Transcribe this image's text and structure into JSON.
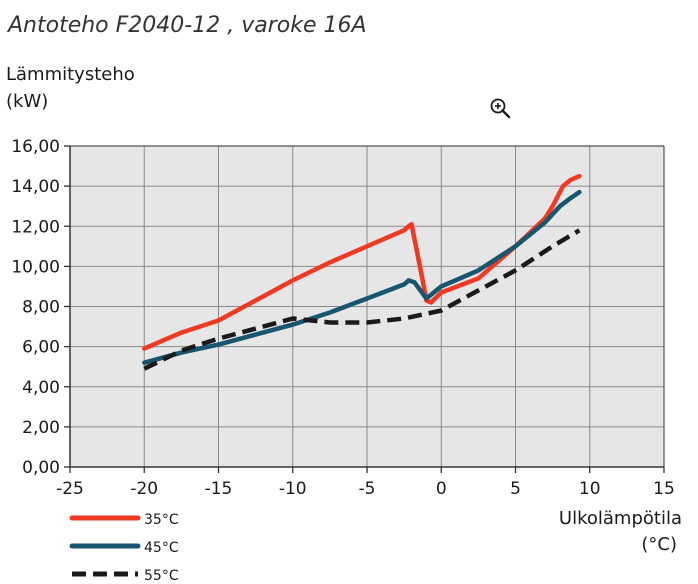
{
  "chart_data": {
    "type": "line",
    "title": "Antoteho F2040-12 , varoke 16A",
    "ylabel_line1": "Lämmitysteho",
    "ylabel_line2": "(kW)",
    "xlabel_line1": "Ulkolämpötila",
    "xlabel_line2": "(°C)",
    "xlim": [
      -25,
      15
    ],
    "ylim": [
      0,
      16
    ],
    "x_ticks": [
      -25,
      -20,
      -15,
      -10,
      -5,
      0,
      5,
      10,
      15
    ],
    "x_tick_labels": [
      "-25",
      "-20",
      "-15",
      "-10",
      "-5",
      "0",
      "5",
      "10",
      "15"
    ],
    "y_ticks": [
      0,
      2,
      4,
      6,
      8,
      10,
      12,
      14,
      16
    ],
    "y_tick_labels": [
      "0,00",
      "2,00",
      "4,00",
      "6,00",
      "8,00",
      "10,00",
      "12,00",
      "14,00",
      "16,00"
    ],
    "grid": true,
    "legend_position": "bottom-left",
    "plot_background": "#e6e6e6",
    "series": [
      {
        "name": "35°C",
        "color": "#ee3a24",
        "dash": "solid",
        "x": [
          -20,
          -17.5,
          -15,
          -12.5,
          -10,
          -7.5,
          -5,
          -2.5,
          -2.2,
          -2.0,
          -1.3,
          -1.0,
          -0.7,
          0,
          2.5,
          5,
          7,
          7.5,
          8.2,
          8.7,
          9.3
        ],
        "y": [
          5.9,
          6.7,
          7.3,
          8.3,
          9.3,
          10.2,
          11.0,
          11.8,
          12.0,
          12.1,
          9.5,
          8.3,
          8.2,
          8.7,
          9.4,
          11.0,
          12.4,
          13.0,
          14.0,
          14.3,
          14.5
        ]
      },
      {
        "name": "45°C",
        "color": "#17566e",
        "dash": "solid",
        "x": [
          -20,
          -17.5,
          -15,
          -12.5,
          -10,
          -7.5,
          -5,
          -2.5,
          -2.2,
          -1.8,
          -1.0,
          -0.5,
          0,
          2.5,
          5,
          7,
          8,
          8.7,
          9.3
        ],
        "y": [
          5.2,
          5.7,
          6.1,
          6.6,
          7.1,
          7.7,
          8.4,
          9.1,
          9.3,
          9.2,
          8.4,
          8.7,
          9.0,
          9.8,
          11.0,
          12.2,
          13.0,
          13.4,
          13.7
        ]
      },
      {
        "name": "55°C",
        "color": "#1a1a1a",
        "dash": "dashed",
        "x": [
          -20,
          -17.5,
          -15,
          -12.5,
          -10,
          -7.5,
          -5,
          -2.5,
          0,
          2.5,
          5,
          7.5,
          9.3
        ],
        "y": [
          4.9,
          5.8,
          6.4,
          6.9,
          7.4,
          7.2,
          7.2,
          7.4,
          7.8,
          8.8,
          9.8,
          11.0,
          11.8
        ]
      }
    ]
  }
}
